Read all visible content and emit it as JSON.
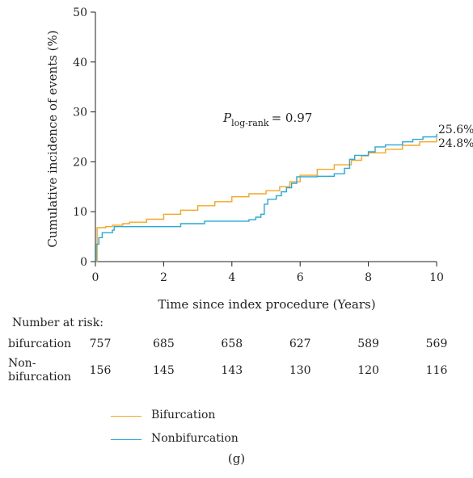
{
  "chart_data": {
    "type": "line",
    "ylabel": "Cumulative incidence of events (%)",
    "xlabel": "Time since index procedure (Years)",
    "xlim": [
      0,
      10
    ],
    "ylim": [
      0,
      50
    ],
    "xticks": [
      0,
      2,
      4,
      6,
      8,
      10
    ],
    "yticks": [
      0,
      10,
      20,
      30,
      40,
      50
    ],
    "grid": false,
    "annotation": {
      "p_label": "P",
      "p_subscript": "log-rank",
      "p_value": "= 0.97"
    },
    "end_labels": [
      "25.6%",
      "24.8%"
    ],
    "series": [
      {
        "name": "Bifurcation",
        "color": "#f5a623",
        "x": [
          0,
          0.05,
          0.3,
          0.5,
          0.8,
          1.0,
          1.5,
          2.0,
          2.5,
          3.0,
          3.5,
          4.0,
          4.5,
          5.0,
          5.4,
          5.7,
          6.0,
          6.5,
          7.0,
          7.5,
          7.8,
          8.0,
          8.5,
          9.0,
          9.5,
          10.0
        ],
        "y": [
          0,
          6.8,
          7.0,
          7.3,
          7.6,
          7.9,
          8.5,
          9.5,
          10.3,
          11.2,
          12.0,
          13.0,
          13.6,
          14.2,
          15.0,
          16.0,
          17.3,
          18.5,
          19.4,
          20.3,
          21.2,
          21.8,
          22.5,
          23.3,
          24.0,
          24.8
        ]
      },
      {
        "name": "Nonbifurcation",
        "color": "#29a9d8",
        "x": [
          0,
          0.02,
          0.1,
          0.2,
          0.5,
          0.55,
          2.5,
          3.2,
          4.5,
          4.7,
          4.85,
          4.95,
          5.05,
          5.3,
          5.45,
          5.6,
          5.75,
          5.9,
          6.5,
          7.0,
          7.3,
          7.45,
          7.6,
          8.0,
          8.2,
          8.5,
          9.0,
          9.3,
          9.6,
          10.0
        ],
        "y": [
          0,
          3.5,
          4.8,
          5.8,
          6.3,
          7.0,
          7.6,
          8.1,
          8.4,
          8.9,
          9.5,
          11.5,
          12.5,
          13.2,
          14.0,
          14.8,
          15.7,
          17.0,
          17.1,
          17.6,
          18.7,
          20.5,
          21.3,
          22.0,
          23.0,
          23.4,
          24.0,
          24.5,
          25.0,
          25.6
        ]
      }
    ]
  },
  "risk_table": {
    "title": "Number at risk:",
    "rows": [
      {
        "label": "bifurcation",
        "values": [
          "757",
          "685",
          "658",
          "627",
          "589",
          "569"
        ]
      },
      {
        "label_line1": "Non-",
        "label_line2": "bifurcation",
        "values": [
          "156",
          "145",
          "143",
          "130",
          "120",
          "116"
        ]
      }
    ]
  },
  "legend": {
    "items": [
      {
        "label": "Bifurcation",
        "color": "#f5a623"
      },
      {
        "label": "Nonbifurcation",
        "color": "#29a9d8"
      }
    ]
  },
  "caption": "(g)"
}
